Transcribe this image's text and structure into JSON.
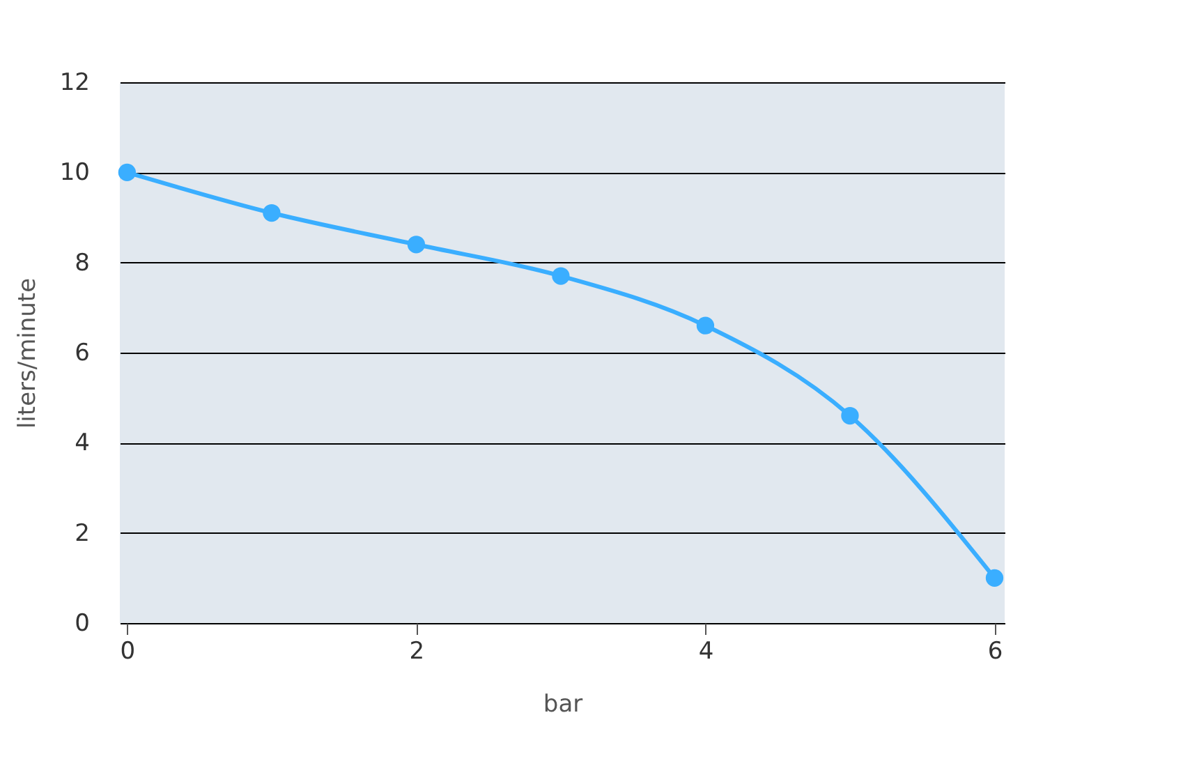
{
  "chart_data": {
    "type": "line",
    "xlabel": "bar",
    "ylabel": "liters/minute",
    "x": [
      0,
      1,
      2,
      3,
      4,
      5,
      6
    ],
    "series": [
      {
        "color": "#3aaeff",
        "values": [
          10,
          9.1,
          8.4,
          7.7,
          6.6,
          4.6,
          1.0
        ]
      }
    ],
    "xlim": [
      -0.05,
      6.07
    ],
    "xticks": [
      0,
      2,
      4,
      6
    ],
    "ylim": [
      0,
      12
    ],
    "yticks": [
      0,
      2,
      4,
      6,
      8,
      10,
      12
    ],
    "grid": "y",
    "marker": "circle",
    "line_style": "solid",
    "legend": false
  }
}
